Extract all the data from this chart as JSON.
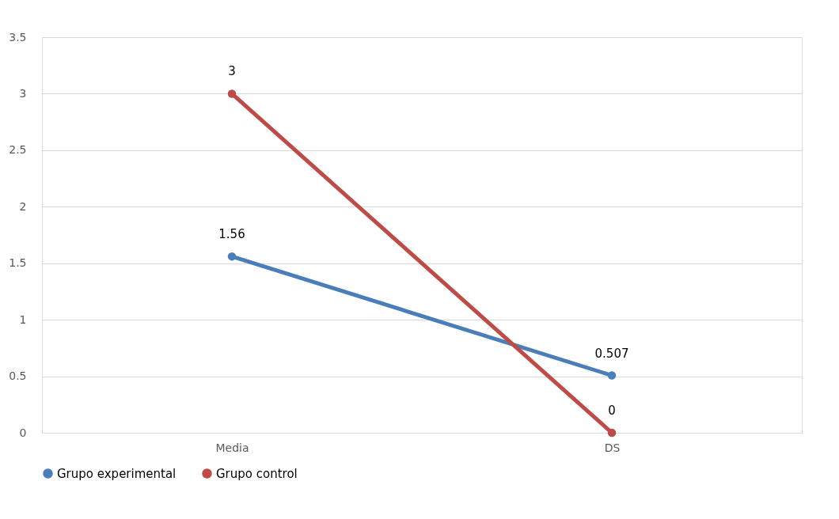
{
  "chart_data": {
    "type": "line",
    "categories": [
      "Media",
      "DS"
    ],
    "series": [
      {
        "name": "Grupo experimental",
        "color": "#4a7ebb",
        "values": [
          1.56,
          0.507
        ]
      },
      {
        "name": "Grupo control",
        "color": "#be4b48",
        "values": [
          3,
          0
        ]
      }
    ],
    "ylim": [
      0,
      3.5
    ],
    "yticks": [
      0,
      0.5,
      1,
      1.5,
      2,
      2.5,
      3,
      3.5
    ],
    "grid": "y",
    "legend": "bottom",
    "marker": "circle",
    "data_labels": true
  }
}
